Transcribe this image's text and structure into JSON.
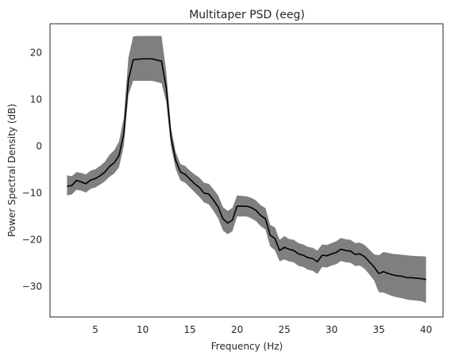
{
  "chart_data": {
    "type": "line",
    "title": "Multitaper PSD (eeg)",
    "xlabel": "Frequency (Hz)",
    "ylabel": "Power Spectral Density (dB)",
    "xlim": [
      0.2,
      41.8
    ],
    "ylim": [
      -36.5,
      26.2
    ],
    "xticks": [
      5,
      10,
      15,
      20,
      25,
      30,
      35,
      40
    ],
    "yticks": [
      20,
      10,
      0,
      -10,
      -20,
      -30
    ],
    "grid": false,
    "legend": "none",
    "colors": {
      "mean_line": "#000000",
      "band_fill": "#7f7f7f",
      "axes": "#262626"
    },
    "series": [
      {
        "role": "mean",
        "x": [
          2,
          2.5,
          3,
          3.5,
          4,
          4.5,
          5,
          5.5,
          6,
          6.5,
          7,
          7.5,
          8,
          8.5,
          9,
          9.5,
          10,
          11,
          12,
          12.5,
          13,
          13.5,
          14,
          14.5,
          15,
          15.5,
          16,
          16.5,
          17,
          17.5,
          18,
          18.5,
          19,
          19.5,
          20,
          20.5,
          21,
          21.5,
          22,
          22.5,
          23,
          23.5,
          24,
          24.5,
          25,
          25.5,
          26,
          26.5,
          27,
          27.5,
          28,
          28.5,
          29,
          29.5,
          30,
          30.5,
          31,
          31.5,
          32,
          32.5,
          33,
          33.5,
          34,
          34.5,
          35,
          35.5,
          36,
          36.5,
          37,
          37.5,
          38,
          38.5,
          39,
          39.5,
          40
        ],
        "y": [
          -8.5,
          -8.4,
          -7.3,
          -7.6,
          -8.0,
          -7.2,
          -6.9,
          -6.3,
          -5.5,
          -4.3,
          -3.5,
          -2.0,
          2.5,
          14.2,
          18.5,
          18.6,
          18.7,
          18.7,
          18.2,
          12.5,
          2.0,
          -3.0,
          -5.5,
          -6.0,
          -7.0,
          -8.0,
          -8.8,
          -10.0,
          -10.2,
          -11.5,
          -13.0,
          -15.5,
          -16.4,
          -15.8,
          -12.8,
          -12.8,
          -12.8,
          -13.1,
          -13.7,
          -14.8,
          -15.5,
          -19.0,
          -19.7,
          -22.3,
          -21.6,
          -22.0,
          -22.3,
          -23.0,
          -23.3,
          -23.8,
          -24.0,
          -24.7,
          -23.3,
          -23.4,
          -23.0,
          -22.7,
          -22.0,
          -22.3,
          -22.4,
          -23.1,
          -23.0,
          -23.6,
          -24.7,
          -25.8,
          -27.2,
          -26.8,
          -27.2,
          -27.5,
          -27.7,
          -27.8,
          -28.1,
          -28.1,
          -28.2,
          -28.3,
          -28.5
        ]
      },
      {
        "role": "band-upper",
        "x": [
          2,
          2.5,
          3,
          3.5,
          4,
          4.5,
          5,
          5.5,
          6,
          6.5,
          7,
          7.5,
          8,
          8.5,
          9,
          9.5,
          10,
          11,
          12,
          12.5,
          13,
          13.5,
          14,
          14.5,
          15,
          15.5,
          16,
          16.5,
          17,
          17.5,
          18,
          18.5,
          19,
          19.5,
          20,
          20.5,
          21,
          21.5,
          22,
          22.5,
          23,
          23.5,
          24,
          24.5,
          25,
          25.5,
          26,
          26.5,
          27,
          27.5,
          28,
          28.5,
          29,
          29.5,
          30,
          30.5,
          31,
          31.5,
          32,
          32.5,
          33,
          33.5,
          34,
          34.5,
          35,
          35.5,
          36,
          36.5,
          37,
          37.5,
          38,
          38.5,
          39,
          39.5,
          40
        ],
        "y": [
          -6.2,
          -6.4,
          -5.5,
          -5.7,
          -6.0,
          -5.2,
          -4.9,
          -4.2,
          -3.3,
          -1.8,
          -0.8,
          1.0,
          6.0,
          19.0,
          23.5,
          23.6,
          23.6,
          23.6,
          23.6,
          16.0,
          4.0,
          -1.2,
          -3.8,
          -4.2,
          -5.2,
          -6.0,
          -6.7,
          -7.8,
          -8.0,
          -9.2,
          -10.5,
          -13.0,
          -13.8,
          -13.2,
          -10.5,
          -10.6,
          -10.7,
          -11.0,
          -11.6,
          -12.6,
          -13.2,
          -16.8,
          -17.3,
          -20.0,
          -19.2,
          -19.8,
          -20.0,
          -20.7,
          -21.0,
          -21.5,
          -21.7,
          -22.3,
          -21.0,
          -21.1,
          -20.7,
          -20.3,
          -19.6,
          -19.9,
          -20.0,
          -20.7,
          -20.6,
          -21.1,
          -22.1,
          -23.1,
          -23.3,
          -22.6,
          -22.8,
          -23.0,
          -23.1,
          -23.2,
          -23.3,
          -23.4,
          -23.5,
          -23.5,
          -23.6
        ]
      },
      {
        "role": "band-lower",
        "x": [
          2,
          2.5,
          3,
          3.5,
          4,
          4.5,
          5,
          5.5,
          6,
          6.5,
          7,
          7.5,
          8,
          8.5,
          9,
          9.5,
          10,
          11,
          12,
          12.5,
          13,
          13.5,
          14,
          14.5,
          15,
          15.5,
          16,
          16.5,
          17,
          17.5,
          18,
          18.5,
          19,
          19.5,
          20,
          20.5,
          21,
          21.5,
          22,
          22.5,
          23,
          23.5,
          24,
          24.5,
          25,
          25.5,
          26,
          26.5,
          27,
          27.5,
          28,
          28.5,
          29,
          29.5,
          30,
          30.5,
          31,
          31.5,
          32,
          32.5,
          33,
          33.5,
          34,
          34.5,
          35,
          35.5,
          36,
          36.5,
          37,
          37.5,
          38,
          38.5,
          39,
          39.5,
          40
        ],
        "y": [
          -10.5,
          -10.3,
          -9.3,
          -9.5,
          -9.9,
          -9.1,
          -8.8,
          -8.2,
          -7.5,
          -6.5,
          -5.8,
          -4.5,
          0.0,
          11.0,
          14.0,
          14.0,
          14.0,
          14.0,
          13.5,
          9.5,
          0.0,
          -4.8,
          -7.3,
          -7.8,
          -8.8,
          -9.8,
          -10.8,
          -12.0,
          -12.4,
          -13.8,
          -15.4,
          -18.0,
          -18.8,
          -18.2,
          -15.0,
          -15.0,
          -15.0,
          -15.4,
          -16.0,
          -17.1,
          -17.8,
          -21.4,
          -22.2,
          -24.6,
          -24.2,
          -24.6,
          -24.8,
          -25.6,
          -25.8,
          -26.4,
          -26.6,
          -27.3,
          -25.8,
          -25.9,
          -25.5,
          -25.2,
          -24.5,
          -24.8,
          -24.9,
          -25.6,
          -25.5,
          -26.2,
          -27.4,
          -28.7,
          -31.2,
          -31.3,
          -31.7,
          -32.1,
          -32.3,
          -32.5,
          -32.8,
          -32.9,
          -33.0,
          -33.1,
          -33.5
        ]
      }
    ]
  }
}
